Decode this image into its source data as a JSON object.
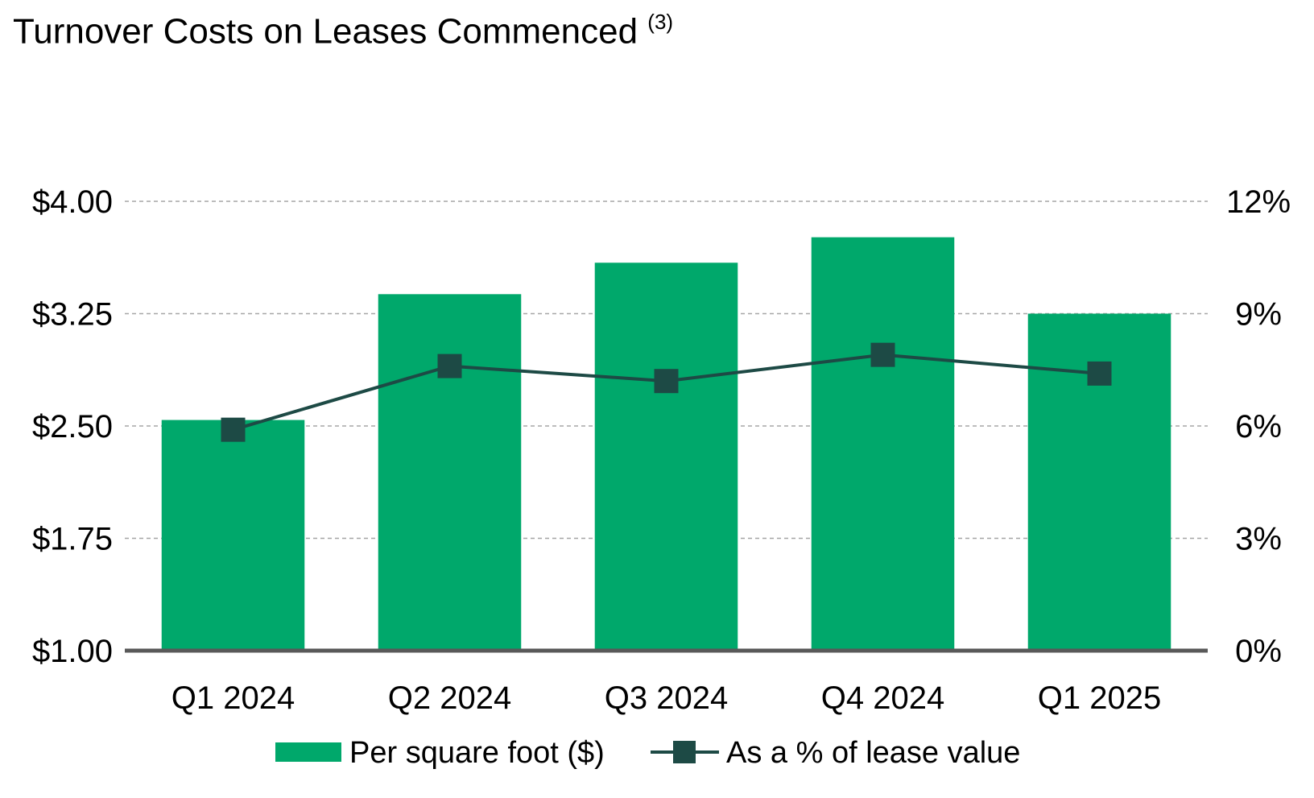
{
  "chart_data": {
    "type": "bar",
    "title": "Turnover Costs on Leases Commenced",
    "title_superscript": "(3)",
    "categories": [
      "Q1 2024",
      "Q2 2024",
      "Q3 2024",
      "Q4 2024",
      "Q1 2025"
    ],
    "series": [
      {
        "name": "Per square foot ($)",
        "type": "bar",
        "axis": "left",
        "color": "#00a86b",
        "values": [
          2.54,
          3.38,
          3.59,
          3.76,
          3.25
        ]
      },
      {
        "name": "As a % of lease value",
        "type": "line",
        "axis": "right",
        "color": "#1d4a45",
        "marker": "square",
        "values": [
          5.9,
          7.6,
          7.2,
          7.9,
          7.4
        ]
      }
    ],
    "y_left": {
      "ylim": [
        1.0,
        4.0
      ],
      "ticks": [
        1.0,
        1.75,
        2.5,
        3.25,
        4.0
      ],
      "tick_labels": [
        "$1.00",
        "$1.75",
        "$2.50",
        "$3.25",
        "$4.00"
      ]
    },
    "y_right": {
      "ylim": [
        0,
        12
      ],
      "ticks": [
        0,
        3,
        6,
        9,
        12
      ],
      "tick_labels": [
        "0%",
        "3%",
        "6%",
        "9%",
        "12%"
      ]
    },
    "grid": true,
    "legend_position": "bottom-center"
  }
}
